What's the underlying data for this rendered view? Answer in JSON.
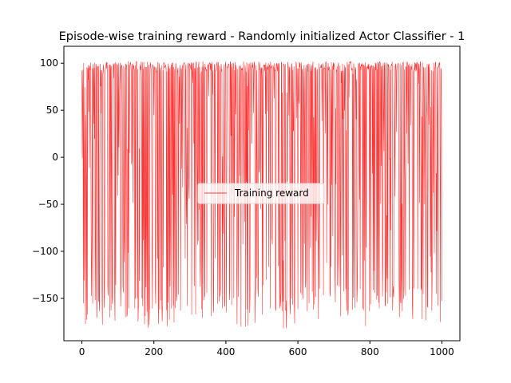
{
  "chart_data": {
    "type": "line",
    "title": "Episode-wise training reward - Randomly initialized Actor Classifier - 1",
    "xlabel": "",
    "ylabel": "",
    "xlim": [
      -50,
      1050
    ],
    "ylim": [
      -195,
      118
    ],
    "xticks": [
      0,
      200,
      400,
      600,
      800,
      1000
    ],
    "xtick_labels": [
      "0",
      "200",
      "400",
      "600",
      "800",
      "1000"
    ],
    "yticks": [
      100,
      50,
      0,
      -50,
      -100,
      -150
    ],
    "ytick_labels": [
      "100",
      "50",
      "0",
      "−50",
      "−100",
      "−150"
    ],
    "grid": false,
    "legend_position": "center",
    "series": [
      {
        "name": "Training reward",
        "color": "#ff0000",
        "x_start": 0,
        "x_end": 1000,
        "n_points": 1001,
        "typical_high": 97,
        "typical_low": -150,
        "max": 102,
        "min": -182
      }
    ]
  }
}
